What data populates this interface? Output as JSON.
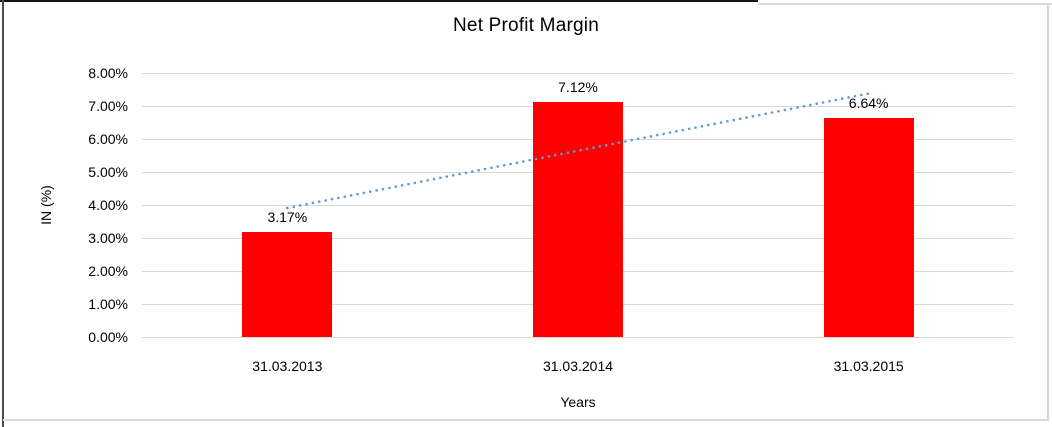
{
  "chart_data": {
    "type": "bar",
    "title": "Net Profit Margin",
    "categories": [
      "31.03.2013",
      "31.03.2014",
      "31.03.2015"
    ],
    "values": [
      3.17,
      7.12,
      6.64
    ],
    "data_labels": [
      "3.17%",
      "7.12%",
      "6.64%"
    ],
    "xlabel": "Years",
    "ylabel": "IN (%)",
    "ylim": [
      0,
      8
    ],
    "ytick_labels": [
      "0.00%",
      "1.00%",
      "2.00%",
      "3.00%",
      "4.00%",
      "5.00%",
      "6.00%",
      "7.00%",
      "8.00%"
    ],
    "grid": true,
    "legend": false,
    "bar_color": "#FF0000",
    "gridline_color": "#D9D9D9",
    "text_color": "#000000",
    "trendline": {
      "type": "linear",
      "style": "dotted",
      "color": "#5B9BD5",
      "start_value": 3.91,
      "end_value": 7.38
    }
  }
}
